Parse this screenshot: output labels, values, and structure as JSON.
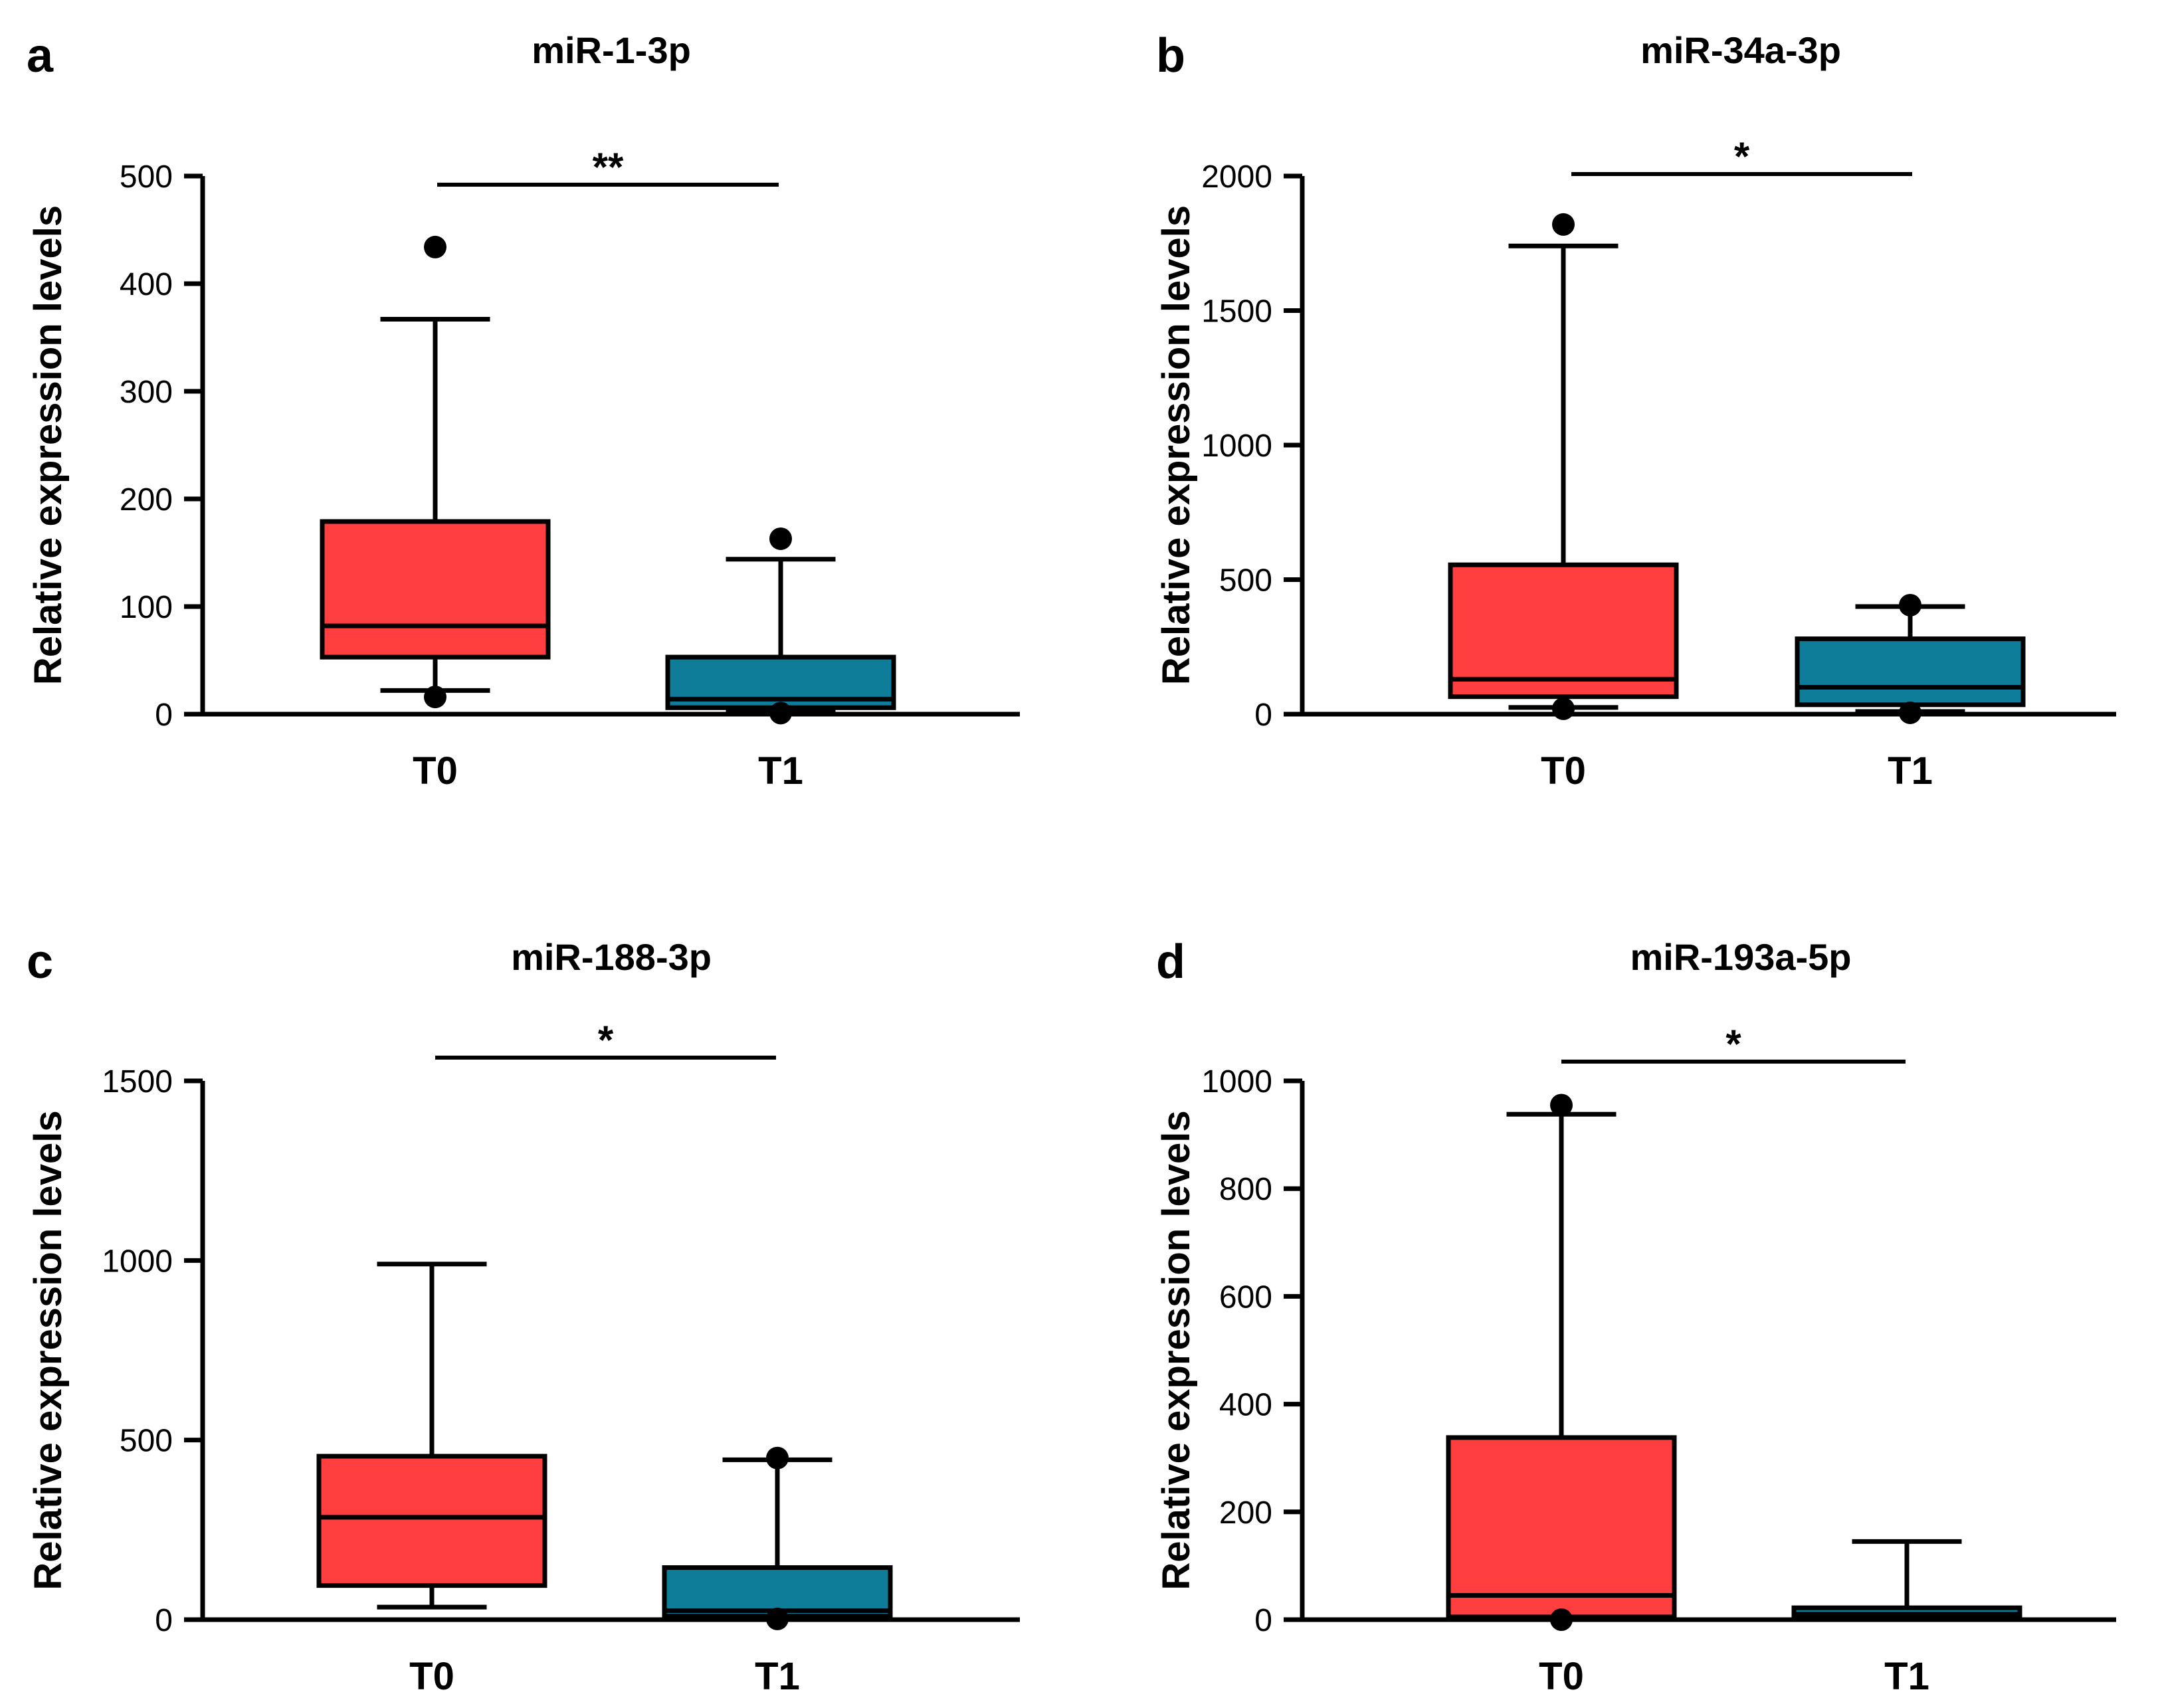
{
  "chart_data": [
    {
      "type": "box",
      "panel_label": "a",
      "title": "miR-1-3p",
      "xlabel": "",
      "ylabel": "Relative expression levels",
      "ylim": [
        0,
        500
      ],
      "yticks": [
        0,
        100,
        200,
        300,
        400,
        500
      ],
      "categories": [
        "T0",
        "T1"
      ],
      "colors": [
        "#FF3F3F",
        "#0E7D99"
      ],
      "boxes": [
        {
          "min": 22,
          "q1": 53,
          "median": 82,
          "q3": 179,
          "max": 367,
          "outliers": [
            434,
            16
          ]
        },
        {
          "min": 2,
          "q1": 6,
          "median": 14,
          "q3": 53,
          "max": 144,
          "outliers": [
            163,
            1
          ]
        }
      ],
      "significance": "**"
    },
    {
      "type": "box",
      "panel_label": "b",
      "title": "miR-34a-3p",
      "xlabel": "",
      "ylabel": "Relative expression levels",
      "ylim": [
        0,
        2000
      ],
      "yticks": [
        0,
        500,
        1000,
        1500,
        2000
      ],
      "categories": [
        "T0",
        "T1"
      ],
      "colors": [
        "#FF3F3F",
        "#0E7D99"
      ],
      "boxes": [
        {
          "min": 25,
          "q1": 65,
          "median": 130,
          "q3": 555,
          "max": 1740,
          "outliers": [
            1820,
            20
          ]
        },
        {
          "min": 10,
          "q1": 35,
          "median": 100,
          "q3": 280,
          "max": 400,
          "outliers": [
            405,
            5
          ]
        }
      ],
      "significance": "*"
    },
    {
      "type": "box",
      "panel_label": "c",
      "title": "miR-188-3p",
      "xlabel": "",
      "ylabel": "Relative expression levels",
      "ylim": [
        0,
        1500
      ],
      "yticks": [
        0,
        500,
        1000,
        1500
      ],
      "categories": [
        "T0",
        "T1"
      ],
      "colors": [
        "#FF3F3F",
        "#0E7D99"
      ],
      "boxes": [
        {
          "min": 35,
          "q1": 95,
          "median": 285,
          "q3": 455,
          "max": 990,
          "outliers": []
        },
        {
          "min": 2,
          "q1": 10,
          "median": 25,
          "q3": 145,
          "max": 445,
          "outliers": [
            450,
            2
          ]
        }
      ],
      "significance": "*"
    },
    {
      "type": "box",
      "panel_label": "d",
      "title": "miR-193a-5p",
      "xlabel": "",
      "ylabel": "Relative expression levels",
      "ylim": [
        0,
        1000
      ],
      "yticks": [
        0,
        200,
        400,
        600,
        800,
        1000
      ],
      "categories": [
        "T0",
        "T1"
      ],
      "colors": [
        "#FF3F3F",
        "#0E7D99"
      ],
      "boxes": [
        {
          "min": 0,
          "q1": 5,
          "median": 45,
          "q3": 338,
          "max": 938,
          "outliers": [
            955,
            0
          ]
        },
        {
          "min": 0,
          "q1": 2,
          "median": 10,
          "q3": 22,
          "max": 145,
          "outliers": []
        }
      ],
      "significance": "*"
    }
  ]
}
